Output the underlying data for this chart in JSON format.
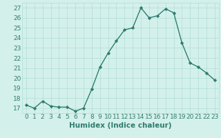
{
  "x": [
    0,
    1,
    2,
    3,
    4,
    5,
    6,
    7,
    8,
    9,
    10,
    11,
    12,
    13,
    14,
    15,
    16,
    17,
    18,
    19,
    20,
    21,
    22,
    23
  ],
  "y": [
    17.3,
    17.0,
    17.7,
    17.2,
    17.1,
    17.1,
    16.7,
    17.0,
    18.9,
    21.1,
    22.5,
    23.7,
    24.8,
    25.0,
    27.0,
    26.0,
    26.2,
    26.9,
    26.5,
    23.5,
    21.5,
    21.1,
    20.5,
    19.8
  ],
  "line_color": "#2e7d6e",
  "marker": "D",
  "marker_size": 2.2,
  "line_width": 1.0,
  "bg_color": "#d4f0eb",
  "grid_color": "#b0ddd8",
  "xlabel": "Humidex (Indice chaleur)",
  "xlim": [
    -0.5,
    23.5
  ],
  "ylim": [
    16.5,
    27.5
  ],
  "yticks": [
    17,
    18,
    19,
    20,
    21,
    22,
    23,
    24,
    25,
    26,
    27
  ],
  "xticks": [
    0,
    1,
    2,
    3,
    4,
    5,
    6,
    7,
    8,
    9,
    10,
    11,
    12,
    13,
    14,
    15,
    16,
    17,
    18,
    19,
    20,
    21,
    22,
    23
  ],
  "xlabel_fontsize": 7.5,
  "tick_fontsize": 6.5
}
